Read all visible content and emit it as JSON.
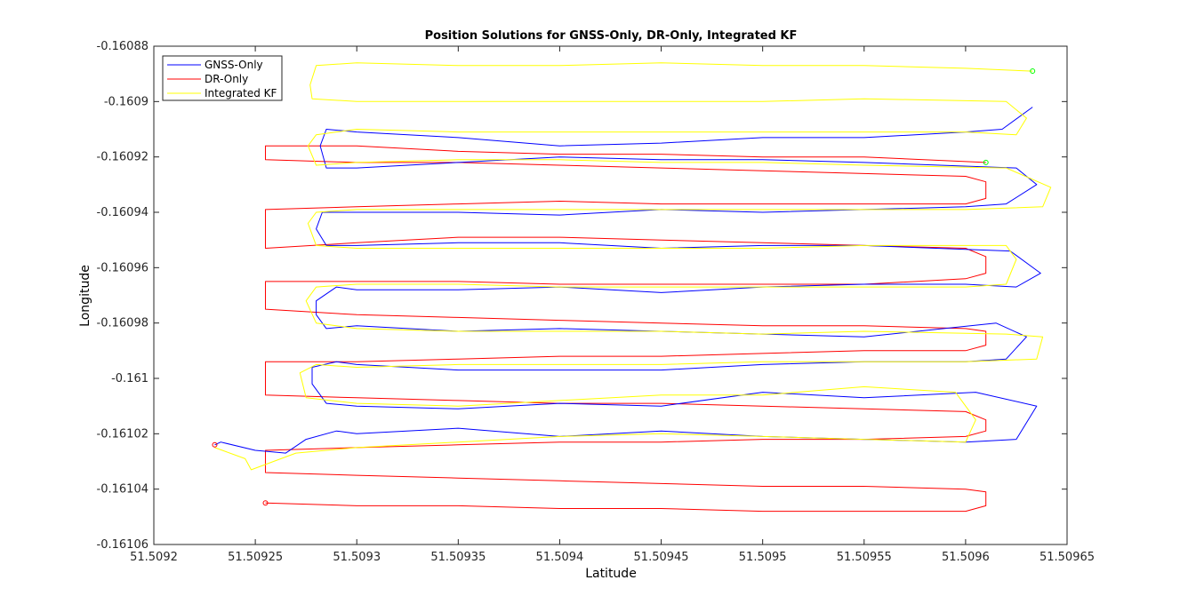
{
  "chart_data": {
    "type": "line",
    "title": "Position Solutions for GNSS-Only, DR-Only, Integrated KF",
    "xlabel": "Latitude",
    "ylabel": "Longitude",
    "xlim": [
      51.5092,
      51.50965
    ],
    "ylim": [
      -0.16106,
      -0.16088
    ],
    "xticks": [
      51.5092,
      51.50925,
      51.5093,
      51.50935,
      51.5094,
      51.50945,
      51.5095,
      51.50955,
      51.5096,
      51.50965
    ],
    "xtick_labels": [
      "51.5092",
      "51.50925",
      "51.5093",
      "51.50935",
      "51.5094",
      "51.50945",
      "51.5095",
      "51.50955",
      "51.5096",
      "51.50965"
    ],
    "yticks": [
      -0.16088,
      -0.1609,
      -0.16092,
      -0.16094,
      -0.16096,
      -0.16098,
      -0.161,
      -0.16102,
      -0.16104,
      -0.16106
    ],
    "ytick_labels": [
      "-0.16088",
      "-0.1609",
      "-0.16092",
      "-0.16094",
      "-0.16096",
      "-0.16098",
      "-0.161",
      "-0.16102",
      "-0.16104",
      "-0.16106"
    ],
    "grid": false,
    "legend_position": "top-left",
    "series": [
      {
        "name": "GNSS-Only",
        "color": "#0000ff",
        "x": [
          51.50923,
          51.509233,
          51.50925,
          51.509265,
          51.509275,
          51.50929,
          51.5093,
          51.50935,
          51.5094,
          51.50945,
          51.5095,
          51.50955,
          51.5096,
          51.509625,
          51.509635,
          51.509605,
          51.50955,
          51.5095,
          51.50945,
          51.5094,
          51.50935,
          51.5093,
          51.509285,
          51.509278,
          51.509278,
          51.50929,
          51.5093,
          51.50935,
          51.5094,
          51.50945,
          51.5095,
          51.50955,
          51.5096,
          51.50962,
          51.50963,
          51.509615,
          51.50955,
          51.5095,
          51.50945,
          51.5094,
          51.50935,
          51.5093,
          51.509285,
          51.50928,
          51.50928,
          51.50929,
          51.5093,
          51.50935,
          51.5094,
          51.50945,
          51.5095,
          51.50955,
          51.5096,
          51.509625,
          51.509637,
          51.509622,
          51.50955,
          51.5095,
          51.50945,
          51.5094,
          51.50935,
          51.5093,
          51.509285,
          51.50928,
          51.509283,
          51.5093,
          51.50935,
          51.5094,
          51.50945,
          51.5095,
          51.50955,
          51.5096,
          51.50962,
          51.509635,
          51.509625,
          51.50955,
          51.5095,
          51.50945,
          51.5094,
          51.50935,
          51.5093,
          51.509285,
          51.509282,
          51.509285,
          51.5093,
          51.50935,
          51.5094,
          51.50945,
          51.5095,
          51.50955,
          51.5096,
          51.509618,
          51.509633
        ],
        "y": [
          -0.161024,
          -0.161023,
          -0.161026,
          -0.161027,
          -0.161022,
          -0.161019,
          -0.16102,
          -0.161018,
          -0.161021,
          -0.161019,
          -0.161021,
          -0.161022,
          -0.161023,
          -0.161022,
          -0.16101,
          -0.161005,
          -0.161007,
          -0.161005,
          -0.16101,
          -0.161009,
          -0.161011,
          -0.16101,
          -0.161009,
          -0.161002,
          -0.160996,
          -0.160994,
          -0.160995,
          -0.160997,
          -0.160997,
          -0.160997,
          -0.160995,
          -0.160994,
          -0.160994,
          -0.160993,
          -0.160985,
          -0.16098,
          -0.160985,
          -0.160984,
          -0.160983,
          -0.160982,
          -0.160983,
          -0.160981,
          -0.160982,
          -0.160977,
          -0.160972,
          -0.160967,
          -0.160968,
          -0.160968,
          -0.160967,
          -0.160969,
          -0.160967,
          -0.160966,
          -0.160966,
          -0.160967,
          -0.160962,
          -0.160954,
          -0.160952,
          -0.160952,
          -0.160953,
          -0.160951,
          -0.160951,
          -0.160952,
          -0.160952,
          -0.160946,
          -0.16094,
          -0.16094,
          -0.16094,
          -0.160941,
          -0.160939,
          -0.16094,
          -0.160939,
          -0.160938,
          -0.160937,
          -0.16093,
          -0.160924,
          -0.160922,
          -0.160921,
          -0.160921,
          -0.16092,
          -0.160922,
          -0.160924,
          -0.160924,
          -0.160916,
          -0.16091,
          -0.160911,
          -0.160913,
          -0.160916,
          -0.160915,
          -0.160913,
          -0.160913,
          -0.160911,
          -0.16091,
          -0.160902
        ]
      },
      {
        "name": "DR-Only",
        "color": "#ff0000",
        "x": [
          51.509255,
          51.5093,
          51.50935,
          51.5094,
          51.50945,
          51.5095,
          51.50955,
          51.5096,
          51.50961,
          51.50961,
          51.5096,
          51.50955,
          51.5095,
          51.50945,
          51.5094,
          51.50935,
          51.5093,
          51.509255,
          51.509255,
          51.5093,
          51.50935,
          51.5094,
          51.50945,
          51.5095,
          51.50955,
          51.5096,
          51.50961,
          51.50961,
          51.5096,
          51.50955,
          51.5095,
          51.50945,
          51.5094,
          51.50935,
          51.5093,
          51.509255,
          51.509255,
          51.5093,
          51.50935,
          51.5094,
          51.50945,
          51.5095,
          51.50955,
          51.5096,
          51.50961,
          51.50961,
          51.5096,
          51.50955,
          51.5095,
          51.50945,
          51.5094,
          51.50935,
          51.5093,
          51.509255,
          51.509255,
          51.5093,
          51.50935,
          51.5094,
          51.50945,
          51.5095,
          51.50955,
          51.5096,
          51.50961,
          51.50961,
          51.5096,
          51.50955,
          51.5095,
          51.50945,
          51.5094,
          51.50935,
          51.5093,
          51.509255,
          51.509255,
          51.5093,
          51.50935,
          51.5094,
          51.50945,
          51.5095,
          51.50955,
          51.5096,
          51.50961,
          51.50961,
          51.5096,
          51.50955,
          51.5095,
          51.50945,
          51.5094,
          51.50935,
          51.5093,
          51.509255,
          51.509255,
          51.5093,
          51.50935,
          51.5094,
          51.50945,
          51.5095,
          51.50955,
          51.50961
        ],
        "y": [
          -0.161045,
          -0.161046,
          -0.161046,
          -0.161047,
          -0.161047,
          -0.161048,
          -0.161048,
          -0.161048,
          -0.161046,
          -0.161041,
          -0.16104,
          -0.161039,
          -0.161039,
          -0.161038,
          -0.161037,
          -0.161036,
          -0.161035,
          -0.161034,
          -0.161026,
          -0.161025,
          -0.161024,
          -0.161023,
          -0.161023,
          -0.161022,
          -0.161022,
          -0.161021,
          -0.161019,
          -0.161015,
          -0.161012,
          -0.161011,
          -0.16101,
          -0.161009,
          -0.161009,
          -0.161008,
          -0.161007,
          -0.161006,
          -0.160994,
          -0.160994,
          -0.160993,
          -0.160992,
          -0.160992,
          -0.160991,
          -0.16099,
          -0.16099,
          -0.160988,
          -0.160983,
          -0.160982,
          -0.160981,
          -0.160981,
          -0.16098,
          -0.160979,
          -0.160978,
          -0.160977,
          -0.160975,
          -0.160965,
          -0.160965,
          -0.160965,
          -0.160966,
          -0.160966,
          -0.160966,
          -0.160966,
          -0.160964,
          -0.160962,
          -0.160956,
          -0.160953,
          -0.160952,
          -0.160951,
          -0.16095,
          -0.160949,
          -0.160949,
          -0.160951,
          -0.160953,
          -0.160939,
          -0.160938,
          -0.160937,
          -0.160936,
          -0.160937,
          -0.160937,
          -0.160937,
          -0.160937,
          -0.160935,
          -0.160929,
          -0.160927,
          -0.160926,
          -0.160925,
          -0.160924,
          -0.160923,
          -0.160922,
          -0.160922,
          -0.160921,
          -0.160916,
          -0.160916,
          -0.160918,
          -0.160919,
          -0.160919,
          -0.16092,
          -0.16092,
          -0.160922
        ]
      },
      {
        "name": "Integrated KF",
        "color": "#ffff00",
        "x": [
          51.50923,
          51.509245,
          51.509248,
          51.50927,
          51.5093,
          51.50935,
          51.5094,
          51.50945,
          51.5095,
          51.50955,
          51.5096,
          51.509605,
          51.509595,
          51.50955,
          51.5095,
          51.50945,
          51.5094,
          51.50935,
          51.5093,
          51.509275,
          51.509272,
          51.50928,
          51.5093,
          51.50935,
          51.5094,
          51.50945,
          51.5095,
          51.50955,
          51.5096,
          51.509635,
          51.509638,
          51.50962,
          51.50955,
          51.5095,
          51.50945,
          51.5094,
          51.50935,
          51.5093,
          51.50928,
          51.509275,
          51.50928,
          51.5093,
          51.50935,
          51.5094,
          51.50945,
          51.5095,
          51.50955,
          51.5096,
          51.50962,
          51.509625,
          51.50962,
          51.50955,
          51.5095,
          51.50945,
          51.5094,
          51.50935,
          51.5093,
          51.50928,
          51.509276,
          51.50928,
          51.5093,
          51.50935,
          51.5094,
          51.50945,
          51.5095,
          51.50955,
          51.5096,
          51.509638,
          51.509642,
          51.50962,
          51.50955,
          51.5095,
          51.50945,
          51.5094,
          51.50935,
          51.5093,
          51.50928,
          51.509276,
          51.50928,
          51.5093,
          51.50935,
          51.5094,
          51.50945,
          51.5095,
          51.50955,
          51.5096,
          51.509625,
          51.50963,
          51.50962,
          51.50955,
          51.5095,
          51.50945,
          51.5094,
          51.50935,
          51.5093,
          51.509278,
          51.509277,
          51.50928,
          51.5093,
          51.50935,
          51.5094,
          51.50945,
          51.5095,
          51.50955,
          51.5096,
          51.509633
        ],
        "y": [
          -0.161025,
          -0.161029,
          -0.161033,
          -0.161027,
          -0.161025,
          -0.161023,
          -0.161021,
          -0.16102,
          -0.161021,
          -0.161022,
          -0.161023,
          -0.161015,
          -0.161005,
          -0.161003,
          -0.161006,
          -0.161006,
          -0.161008,
          -0.16101,
          -0.161009,
          -0.161007,
          -0.160998,
          -0.160995,
          -0.160996,
          -0.160995,
          -0.160995,
          -0.160995,
          -0.160994,
          -0.160994,
          -0.160994,
          -0.160993,
          -0.160985,
          -0.160984,
          -0.160983,
          -0.160984,
          -0.160983,
          -0.160983,
          -0.160983,
          -0.160982,
          -0.16098,
          -0.160972,
          -0.160967,
          -0.160966,
          -0.160966,
          -0.160967,
          -0.160967,
          -0.160967,
          -0.160967,
          -0.160967,
          -0.160966,
          -0.160957,
          -0.160952,
          -0.160952,
          -0.160953,
          -0.160953,
          -0.160953,
          -0.160953,
          -0.160953,
          -0.160952,
          -0.160944,
          -0.16094,
          -0.160939,
          -0.160939,
          -0.160939,
          -0.160939,
          -0.160939,
          -0.160939,
          -0.160939,
          -0.160938,
          -0.160931,
          -0.160924,
          -0.160923,
          -0.160922,
          -0.160922,
          -0.160921,
          -0.160921,
          -0.160922,
          -0.160923,
          -0.160916,
          -0.160912,
          -0.16091,
          -0.160911,
          -0.160911,
          -0.160911,
          -0.160911,
          -0.160911,
          -0.160911,
          -0.160912,
          -0.160906,
          -0.1609,
          -0.160899,
          -0.1609,
          -0.1609,
          -0.1609,
          -0.1609,
          -0.1609,
          -0.160899,
          -0.160894,
          -0.160887,
          -0.160886,
          -0.160887,
          -0.160887,
          -0.160886,
          -0.160887,
          -0.160887,
          -0.160888,
          -0.160889
        ]
      }
    ],
    "markers": [
      {
        "color": "#ff0000",
        "x": 51.50923,
        "y": -0.161024
      },
      {
        "color": "#ff0000",
        "x": 51.509255,
        "y": -0.161045
      },
      {
        "color": "#00ff00",
        "x": 51.509633,
        "y": -0.160889
      },
      {
        "color": "#00ff00",
        "x": 51.50961,
        "y": -0.160922
      }
    ]
  }
}
